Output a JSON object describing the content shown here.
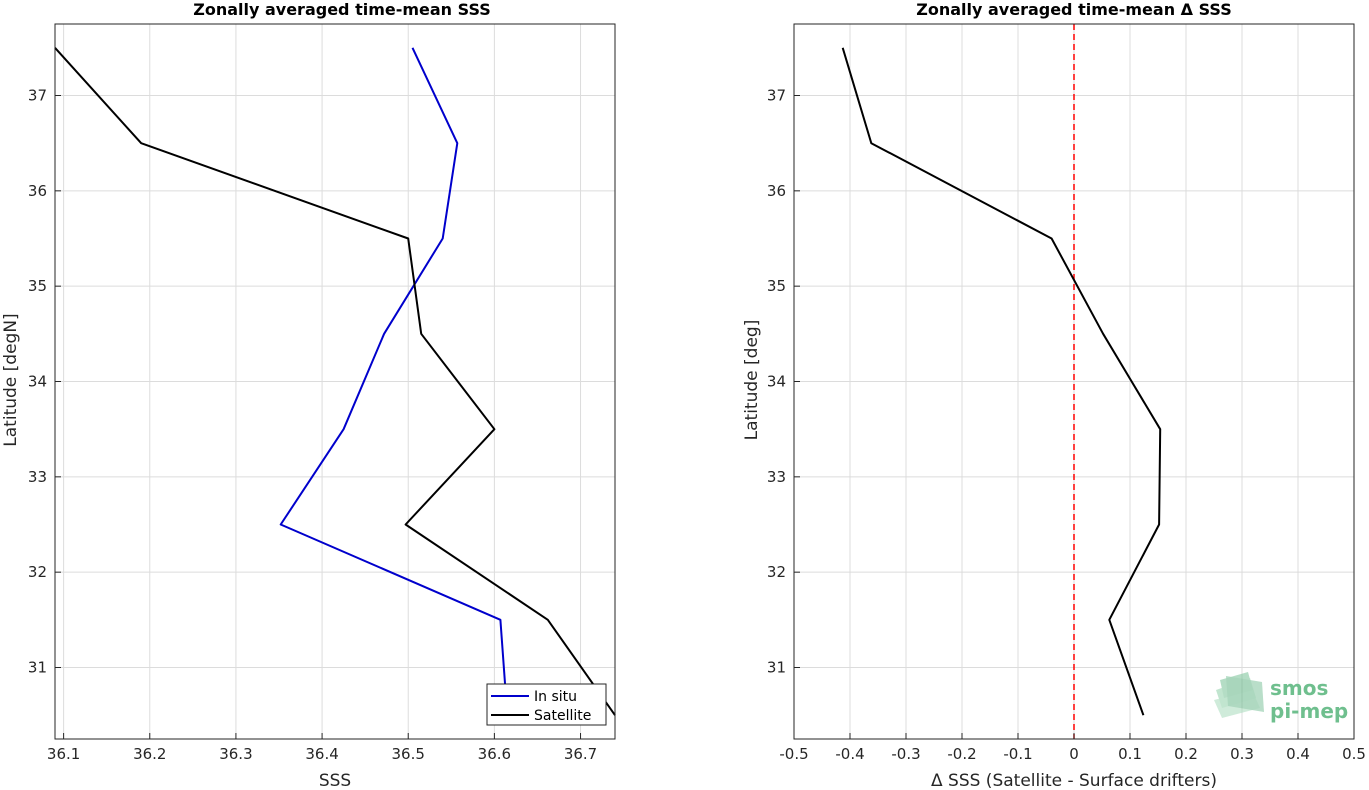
{
  "chart_data": [
    {
      "type": "line",
      "title": "Zonally averaged time-mean SSS",
      "xlabel": "SSS",
      "ylabel": "Latitude [degN]",
      "xlim": [
        36.09,
        36.74
      ],
      "ylim": [
        30.25,
        37.75
      ],
      "xticks": [
        36.1,
        36.2,
        36.3,
        36.4,
        36.5,
        36.6,
        36.7
      ],
      "xtick_labels": [
        "36.1",
        "36.2",
        "36.3",
        "36.4",
        "36.5",
        "36.6",
        "36.7"
      ],
      "yticks": [
        31,
        32,
        33,
        34,
        35,
        36,
        37
      ],
      "ytick_labels": [
        "31",
        "32",
        "33",
        "34",
        "35",
        "36",
        "37"
      ],
      "grid": true,
      "legend_position": "bottom-right",
      "series": [
        {
          "name": "In situ",
          "color": "#0000cc",
          "x": [
            36.505,
            36.557,
            36.54,
            36.472,
            36.425,
            36.352,
            36.607,
            36.615
          ],
          "y": [
            37.5,
            36.5,
            35.5,
            34.5,
            33.5,
            32.5,
            31.5,
            30.5
          ]
        },
        {
          "name": "Satellite",
          "color": "#000000",
          "x": [
            36.09,
            36.19,
            36.5,
            36.515,
            36.6,
            36.497,
            36.662,
            36.743
          ],
          "y": [
            37.5,
            36.5,
            35.5,
            34.5,
            33.5,
            32.5,
            31.5,
            30.5
          ]
        }
      ]
    },
    {
      "type": "line",
      "title": "Zonally averaged time-mean Δ SSS",
      "xlabel": "Δ SSS (Satellite - Surface drifters)",
      "ylabel": "Latitude [deg]",
      "xlim": [
        -0.5,
        0.5
      ],
      "ylim": [
        30.25,
        37.75
      ],
      "xticks": [
        -0.5,
        -0.4,
        -0.3,
        -0.2,
        -0.1,
        0,
        0.1,
        0.2,
        0.3,
        0.4,
        0.5
      ],
      "xtick_labels": [
        "-0.5",
        "-0.4",
        "-0.3",
        "-0.2",
        "-0.1",
        "0",
        "0.1",
        "0.2",
        "0.3",
        "0.4",
        "0.5"
      ],
      "yticks": [
        31,
        32,
        33,
        34,
        35,
        36,
        37
      ],
      "ytick_labels": [
        "31",
        "32",
        "33",
        "34",
        "35",
        "36",
        "37"
      ],
      "grid": true,
      "reference_line": {
        "x": 0,
        "color": "#ff0000",
        "style": "dashed"
      },
      "series": [
        {
          "name": "",
          "color": "#000000",
          "x": [
            -0.413,
            -0.362,
            -0.04,
            0.052,
            0.154,
            0.152,
            0.063,
            0.124
          ],
          "y": [
            37.5,
            36.5,
            35.5,
            34.5,
            33.5,
            32.5,
            31.5,
            30.5
          ]
        }
      ]
    }
  ],
  "logo": {
    "line1": "smos",
    "line2": "pi-mep",
    "color": "#6fbf8e"
  }
}
